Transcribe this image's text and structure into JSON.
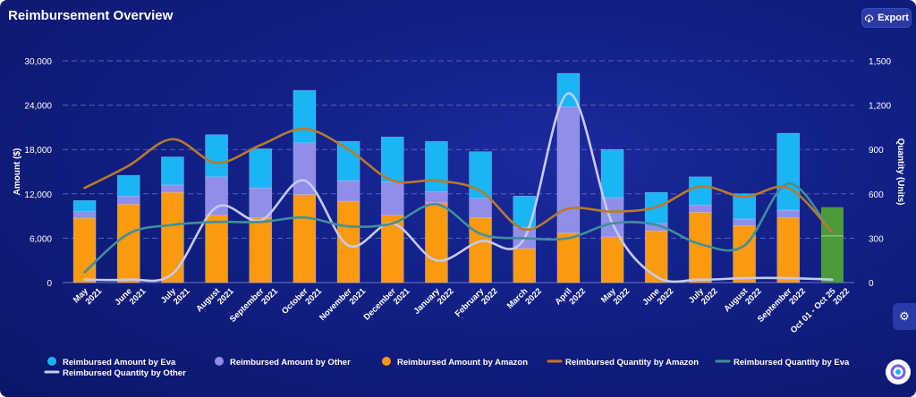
{
  "header": {
    "title": "Reimbursement Overview",
    "export_label": "Export"
  },
  "icons": {
    "export": "cloud-download-icon",
    "settings": "gear-icon",
    "logo": "brand-logo-icon"
  },
  "colors": {
    "eva": "#1ab5f5",
    "other": "#8f8ee8",
    "amazon": "#fa9a0f",
    "qty_amazon": "#b87a2c",
    "qty_eva": "#3f8f9c",
    "qty_other": "#c5c9f0",
    "current": "#4c9a3a"
  },
  "chart_data": {
    "type": "bar",
    "stacked": true,
    "combo_lines": true,
    "title": "Reimbursement Overview",
    "ylabel": "Amount ($)",
    "y2label": "Quantity (Units)",
    "ylim": [
      0,
      30000
    ],
    "y2lim": [
      0,
      1500
    ],
    "yticks": [
      "0",
      "6,000",
      "12,000",
      "18,000",
      "24,000",
      "30,000"
    ],
    "y2ticks": [
      "0",
      "300",
      "600",
      "900",
      "1,200",
      "1,500"
    ],
    "grid": true,
    "legend_position": "bottom",
    "categories": [
      [
        "May",
        "2021"
      ],
      [
        "June",
        "2021"
      ],
      [
        "July",
        "2021"
      ],
      [
        "August",
        "2021"
      ],
      [
        "September",
        "2021"
      ],
      [
        "October",
        "2021"
      ],
      [
        "November",
        "2021"
      ],
      [
        "December",
        "2021"
      ],
      [
        "January",
        "2022"
      ],
      [
        "February",
        "2022"
      ],
      [
        "March",
        "2022"
      ],
      [
        "April",
        "2022"
      ],
      [
        "May",
        "2022"
      ],
      [
        "June",
        "2022"
      ],
      [
        "July",
        "2022"
      ],
      [
        "August",
        "2022"
      ],
      [
        "September",
        "2022"
      ],
      [
        "Oct 01 - Oct 25",
        "2022"
      ]
    ],
    "series": [
      {
        "name": "Reimbursed Amount by Amazon",
        "type": "bar",
        "values": [
          8700,
          10600,
          12200,
          9100,
          8800,
          11900,
          11000,
          9100,
          10800,
          8800,
          4600,
          6700,
          6200,
          7000,
          9500,
          7700,
          8800,
          0
        ]
      },
      {
        "name": "Reimbursed Amount by Other",
        "type": "bar",
        "values": [
          900,
          1100,
          1000,
          5200,
          4000,
          7000,
          2800,
          4500,
          1500,
          2600,
          2900,
          17100,
          5300,
          1000,
          1000,
          900,
          1000,
          0
        ]
      },
      {
        "name": "Reimbursed Amount by Eva",
        "type": "bar",
        "values": [
          1500,
          2800,
          3800,
          5700,
          5300,
          7100,
          5300,
          6100,
          6800,
          6300,
          4200,
          4500,
          6500,
          4200,
          3800,
          3400,
          10400,
          0
        ]
      },
      {
        "name": "Reimbursed Quantity by Amazon",
        "type": "line",
        "axis": "right",
        "values": [
          640,
          790,
          970,
          810,
          930,
          1040,
          900,
          690,
          690,
          620,
          360,
          500,
          480,
          510,
          650,
          580,
          640,
          340
        ]
      },
      {
        "name": "Reimbursed Quantity by Eva",
        "type": "line",
        "axis": "right",
        "values": [
          70,
          330,
          390,
          410,
          410,
          440,
          380,
          400,
          530,
          330,
          300,
          300,
          400,
          390,
          260,
          250,
          670,
          330
        ]
      },
      {
        "name": "Reimbursed Quantity by Other",
        "type": "line",
        "axis": "right",
        "values": [
          20,
          20,
          60,
          510,
          420,
          690,
          250,
          400,
          150,
          280,
          300,
          1280,
          400,
          40,
          20,
          30,
          30,
          20
        ]
      }
    ],
    "current_period": {
      "label": "Oct 01 - Oct 25 2022",
      "value": 10200,
      "segment": 6300
    }
  },
  "legend": [
    {
      "label": "Reimbursed Amount by Eva",
      "kind": "dot",
      "color": "#1ab5f5"
    },
    {
      "label": "Reimbursed Amount by Other",
      "kind": "dot",
      "color": "#8f8ee8"
    },
    {
      "label": "Reimbursed Amount by Amazon",
      "kind": "dot",
      "color": "#fa9a0f"
    },
    {
      "label": "Reimbursed Quantity by Amazon",
      "kind": "line",
      "color": "#b87a2c"
    },
    {
      "label": "Reimbursed Quantity by Eva",
      "kind": "line",
      "color": "#3f8f9c"
    },
    {
      "label": "Reimbursed Quantity by Other",
      "kind": "line",
      "color": "#c5c9f0"
    }
  ]
}
